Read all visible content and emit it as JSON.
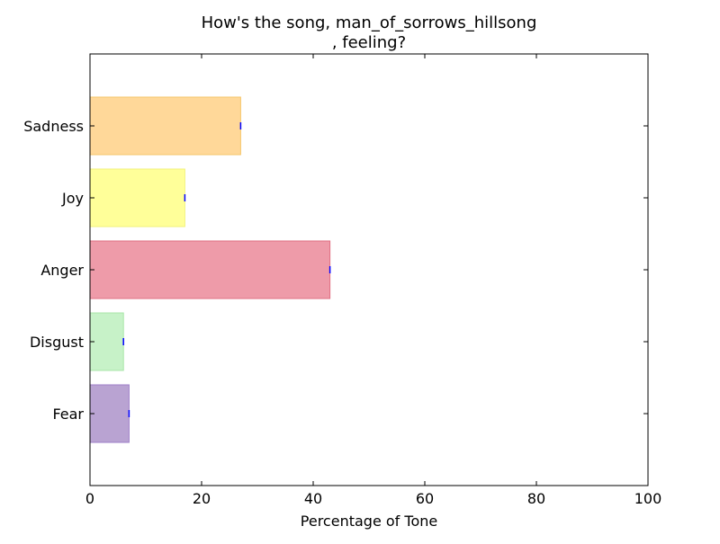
{
  "chart_data": {
    "type": "bar",
    "orientation": "horizontal",
    "title_line1": "How's the song, man_of_sorrows_hillsong",
    "title_line2": ", feeling?",
    "xlabel": "Percentage of Tone",
    "ylabel": "",
    "xlim": [
      0,
      100
    ],
    "xticks": [
      "0",
      "20",
      "40",
      "60",
      "80",
      "100"
    ],
    "categories": [
      "Fear",
      "Disgust",
      "Anger",
      "Joy",
      "Sadness"
    ],
    "values": [
      7,
      6,
      43,
      17,
      27
    ],
    "colors": [
      "#b9a3d2",
      "#c7f2c8",
      "#ee9ba9",
      "#ffff99",
      "#ffd899"
    ],
    "edge_colors": [
      "#9e7fc8",
      "#a8e6a9",
      "#e07084",
      "#f2f27a",
      "#f5c66a"
    ],
    "error_marker_color": "#0000ff",
    "grid": false
  }
}
